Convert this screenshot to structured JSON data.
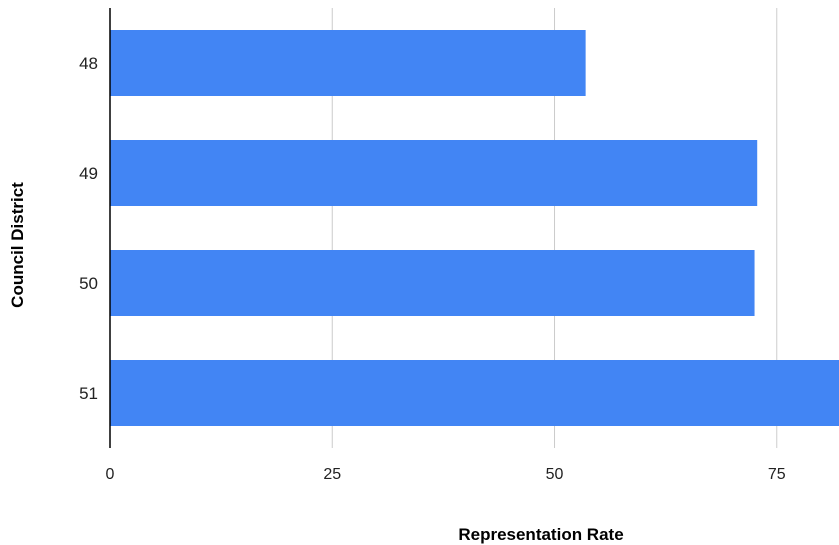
{
  "chart_data": {
    "type": "bar",
    "orientation": "horizontal",
    "title": "",
    "xlabel": "Representation Rate",
    "ylabel": "Council District",
    "categories": [
      "48",
      "49",
      "50",
      "51"
    ],
    "values": [
      53.5,
      72.8,
      72.5,
      82.5
    ],
    "xlim": [
      0,
      82
    ],
    "xticks": [
      "0",
      "25",
      "50",
      "75"
    ],
    "grid": "vertical",
    "legend": "none",
    "colors": {
      "bar": "#4285f4",
      "grid": "#cccccc",
      "axis": "#000000",
      "text": "#222222"
    }
  }
}
